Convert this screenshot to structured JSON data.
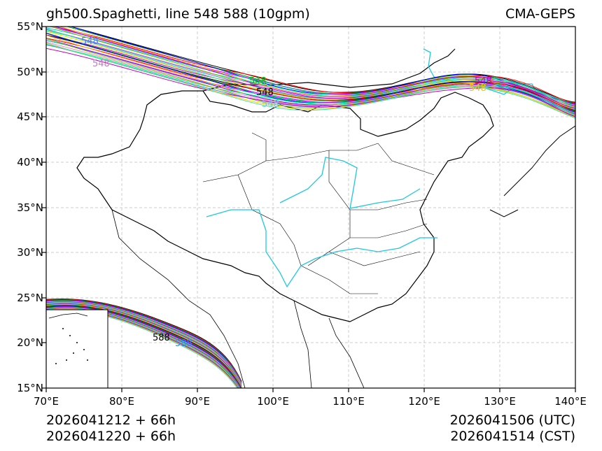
{
  "header": {
    "title_left": "gh500.Spaghetti, line 548 588 (10gpm)",
    "title_right": "CMA-GEPS"
  },
  "axes": {
    "lat_labels": [
      "55°N",
      "50°N",
      "45°N",
      "40°N",
      "35°N",
      "30°N",
      "25°N",
      "20°N",
      "15°N"
    ],
    "lon_labels": [
      "70°E",
      "80°E",
      "90°E",
      "100°E",
      "110°E",
      "120°E",
      "130°E",
      "140°E"
    ],
    "lat_range": [
      15,
      55
    ],
    "lon_range": [
      70,
      140
    ]
  },
  "footer": {
    "init_time": "2026041212 + 66h",
    "init_time_local": "2026041220 + 66h",
    "valid_time_utc": "2026041506 (UTC)",
    "valid_time_cst": "2026041514 (CST)"
  },
  "contour_labels": [
    "548",
    "548",
    "548",
    "548",
    "548",
    "548",
    "548",
    "588",
    "588"
  ],
  "colors": {
    "river": "#1ec8e0",
    "border": "#000000",
    "grid": "#cccccc",
    "members": [
      "#000000",
      "#ff0000",
      "#00a000",
      "#0000ff",
      "#ff00ff",
      "#00c8c8",
      "#ffa500",
      "#8000ff",
      "#00ff80",
      "#ff80c0",
      "#80c000",
      "#4080ff",
      "#c000c0",
      "#ffd000",
      "#40e0a0"
    ]
  }
}
